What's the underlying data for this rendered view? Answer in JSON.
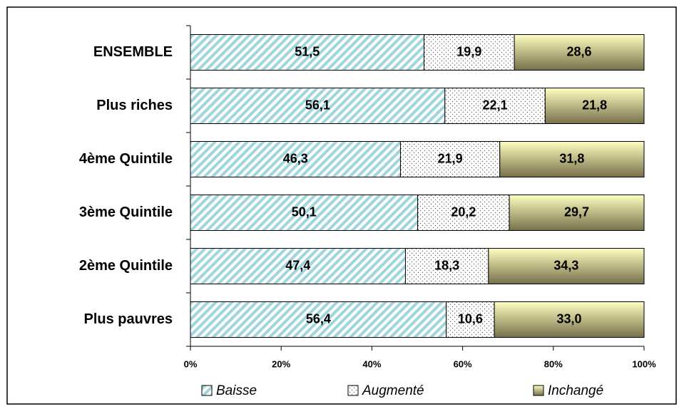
{
  "chart_data": {
    "type": "stacked-bar-horizontal",
    "categories": [
      "ENSEMBLE",
      "Plus riches",
      "4ème Quintile",
      "3ème Quintile",
      "2ème Quintile",
      "Plus pauvres"
    ],
    "series": [
      {
        "name": "Baisse",
        "color": "#9fd6dd",
        "values": [
          51.5,
          56.1,
          46.3,
          50.1,
          47.4,
          56.4
        ],
        "value_labels": [
          "51,5",
          "56,1",
          "46,3",
          "50,1",
          "47,4",
          "56,4"
        ]
      },
      {
        "name": "Augmenté",
        "color": "#ffffff",
        "values": [
          19.9,
          22.1,
          21.9,
          20.2,
          18.3,
          10.6
        ],
        "value_labels": [
          "19,9",
          "22,1",
          "21,9",
          "20,2",
          "18,3",
          "10,6"
        ]
      },
      {
        "name": "Inchangé",
        "color": "#ffffc0",
        "values": [
          28.6,
          21.8,
          31.8,
          29.7,
          34.3,
          33.0
        ],
        "value_labels": [
          "28,6",
          "21,8",
          "31,8",
          "29,7",
          "34,3",
          "33,0"
        ]
      }
    ],
    "xlim": [
      0,
      100
    ],
    "xticks": [
      {
        "value": 0,
        "label": "0%"
      },
      {
        "value": 20,
        "label": "20%"
      },
      {
        "value": 40,
        "label": "40%"
      },
      {
        "value": 60,
        "label": "60%"
      },
      {
        "value": 80,
        "label": "80%"
      },
      {
        "value": 100,
        "label": "100%"
      }
    ],
    "legend": "bottom"
  }
}
